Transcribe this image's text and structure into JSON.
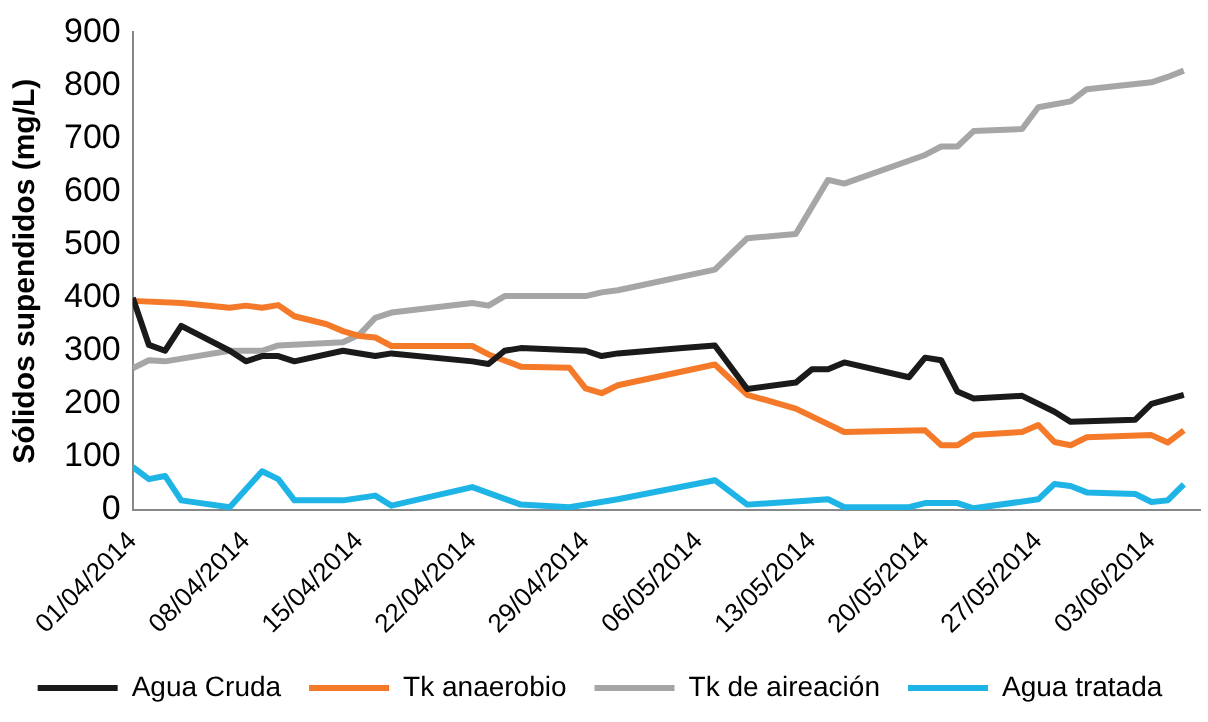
{
  "chart_data": {
    "type": "line",
    "ylabel": "Sólidos supendidos (mg/L)",
    "ylim": [
      0,
      900
    ],
    "yticks": [
      0,
      100,
      200,
      300,
      400,
      500,
      600,
      700,
      800,
      900
    ],
    "xlim": [
      "2014-04-01",
      "2014-06-06"
    ],
    "xticks": [
      {
        "value": "2014-04-01",
        "label": "01/04/2014"
      },
      {
        "value": "2014-04-08",
        "label": "08/04/2014"
      },
      {
        "value": "2014-04-15",
        "label": "15/04/2014"
      },
      {
        "value": "2014-04-22",
        "label": "22/04/2014"
      },
      {
        "value": "2014-04-29",
        "label": "29/04/2014"
      },
      {
        "value": "2014-05-06",
        "label": "06/05/2014"
      },
      {
        "value": "2014-05-13",
        "label": "13/05/2014"
      },
      {
        "value": "2014-05-20",
        "label": "20/05/2014"
      },
      {
        "value": "2014-05-27",
        "label": "27/05/2014"
      },
      {
        "value": "2014-06-03",
        "label": "03/06/2014"
      }
    ],
    "grid": false,
    "legend": "bottom",
    "marker": "none",
    "line_style": "solid",
    "series": [
      {
        "name": "Agua Cruda",
        "color": "#1a1a1a",
        "x": [
          "2014-04-01",
          "2014-04-02",
          "2014-04-03",
          "2014-04-04",
          "2014-04-07",
          "2014-04-08",
          "2014-04-09",
          "2014-04-10",
          "2014-04-11",
          "2014-04-14",
          "2014-04-16",
          "2014-04-17",
          "2014-04-22",
          "2014-04-23",
          "2014-04-24",
          "2014-04-25",
          "2014-04-29",
          "2014-04-30",
          "2014-05-01",
          "2014-05-05",
          "2014-05-07",
          "2014-05-09",
          "2014-05-12",
          "2014-05-13",
          "2014-05-14",
          "2014-05-15",
          "2014-05-19",
          "2014-05-20",
          "2014-05-21",
          "2014-05-22",
          "2014-05-23",
          "2014-05-26",
          "2014-05-28",
          "2014-05-29",
          "2014-06-02",
          "2014-06-03",
          "2014-06-05"
        ],
        "values": [
          400,
          311,
          300,
          347,
          300,
          280,
          290,
          290,
          280,
          300,
          290,
          295,
          280,
          275,
          300,
          305,
          300,
          290,
          295,
          305,
          310,
          228,
          240,
          265,
          265,
          278,
          250,
          287,
          282,
          223,
          210,
          215,
          185,
          166,
          170,
          200,
          217
        ]
      },
      {
        "name": "Tk anaerobio",
        "color": "#f47a2a",
        "x": [
          "2014-04-01",
          "2014-04-04",
          "2014-04-07",
          "2014-04-08",
          "2014-04-09",
          "2014-04-10",
          "2014-04-11",
          "2014-04-13",
          "2014-04-14",
          "2014-04-15",
          "2014-04-16",
          "2014-04-17",
          "2014-04-22",
          "2014-04-23",
          "2014-04-25",
          "2014-04-28",
          "2014-04-29",
          "2014-04-30",
          "2014-05-01",
          "2014-05-07",
          "2014-05-09",
          "2014-05-12",
          "2014-05-15",
          "2014-05-20",
          "2014-05-21",
          "2014-05-22",
          "2014-05-23",
          "2014-05-26",
          "2014-05-27",
          "2014-05-28",
          "2014-05-29",
          "2014-05-30",
          "2014-06-03",
          "2014-06-04",
          "2014-06-05"
        ],
        "values": [
          394,
          390,
          381,
          385,
          381,
          386,
          365,
          350,
          337,
          328,
          325,
          309,
          309,
          293,
          270,
          268,
          229,
          220,
          235,
          274,
          217,
          191,
          147,
          150,
          122,
          122,
          141,
          147,
          160,
          128,
          122,
          137,
          141,
          127,
          150
        ]
      },
      {
        "name": "Tk de aireación",
        "color": "#a6a6a6",
        "x": [
          "2014-04-01",
          "2014-04-02",
          "2014-04-03",
          "2014-04-07",
          "2014-04-09",
          "2014-04-10",
          "2014-04-14",
          "2014-04-15",
          "2014-04-16",
          "2014-04-17",
          "2014-04-22",
          "2014-04-23",
          "2014-04-24",
          "2014-04-29",
          "2014-04-30",
          "2014-05-01",
          "2014-05-07",
          "2014-05-09",
          "2014-05-12",
          "2014-05-14",
          "2014-05-15",
          "2014-05-20",
          "2014-05-21",
          "2014-05-22",
          "2014-05-23",
          "2014-05-26",
          "2014-05-27",
          "2014-05-29",
          "2014-05-30",
          "2014-06-03",
          "2014-06-04",
          "2014-06-05"
        ],
        "values": [
          267,
          282,
          280,
          300,
          300,
          310,
          316,
          330,
          362,
          372,
          390,
          385,
          403,
          403,
          410,
          414,
          453,
          512,
          520,
          622,
          615,
          669,
          685,
          685,
          714,
          718,
          759,
          770,
          793,
          806,
          816,
          828
        ]
      },
      {
        "name": "Agua tratada",
        "color": "#1fb4e6",
        "x": [
          "2014-04-01",
          "2014-04-02",
          "2014-04-03",
          "2014-04-04",
          "2014-04-07",
          "2014-04-09",
          "2014-04-10",
          "2014-04-11",
          "2014-04-14",
          "2014-04-16",
          "2014-04-17",
          "2014-04-22",
          "2014-04-25",
          "2014-04-28",
          "2014-05-01",
          "2014-05-07",
          "2014-05-09",
          "2014-05-14",
          "2014-05-15",
          "2014-05-19",
          "2014-05-20",
          "2014-05-22",
          "2014-05-23",
          "2014-05-27",
          "2014-05-28",
          "2014-05-29",
          "2014-05-30",
          "2014-06-02",
          "2014-06-03",
          "2014-06-04",
          "2014-06-05"
        ],
        "values": [
          81,
          58,
          64,
          18,
          5,
          73,
          58,
          18,
          18,
          27,
          8,
          43,
          10,
          5,
          20,
          56,
          10,
          20,
          5,
          5,
          13,
          13,
          3,
          20,
          49,
          45,
          33,
          30,
          15,
          18,
          48
        ]
      }
    ]
  }
}
